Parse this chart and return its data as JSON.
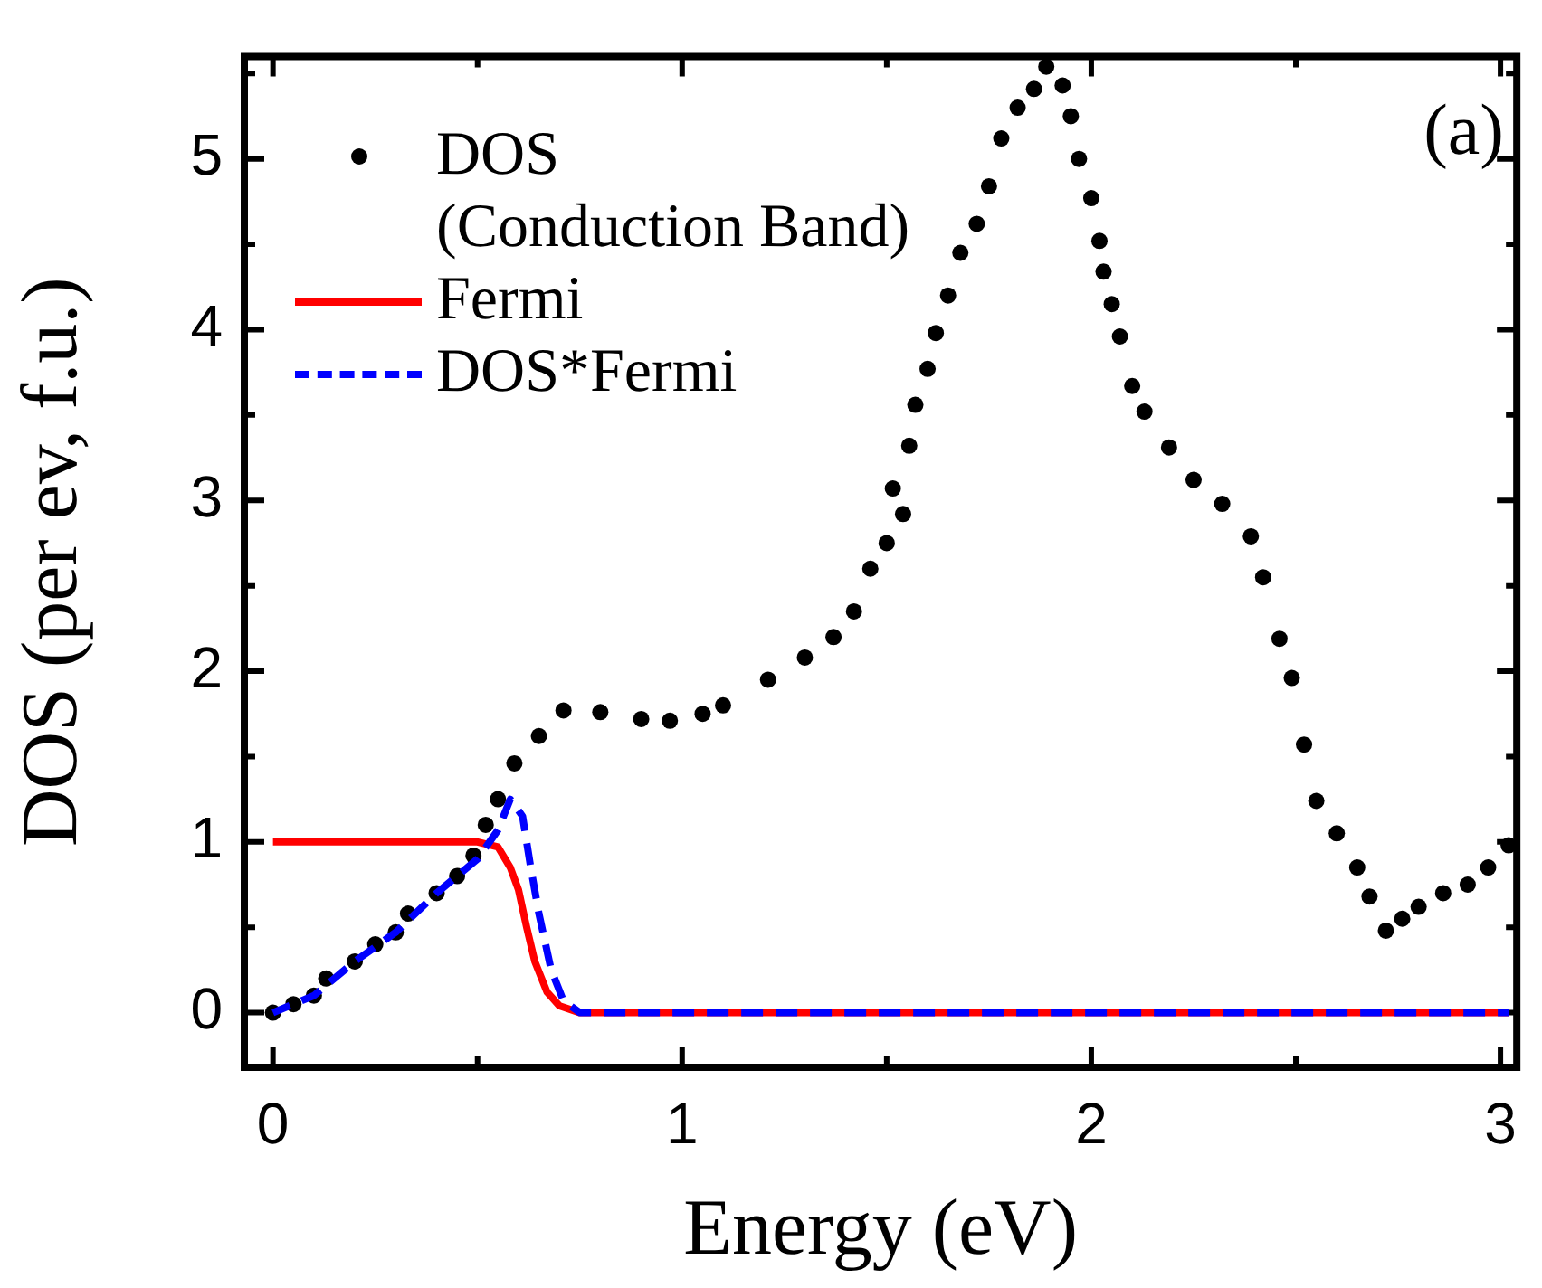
{
  "chart_data": {
    "type": "line",
    "xlabel": "Energy (eV)",
    "ylabel": "DOS (per ev, f.u.)",
    "annotations": [
      "(a)"
    ],
    "xlim": [
      -0.07,
      3.04
    ],
    "ylim": [
      -0.32,
      5.6
    ],
    "xticks": [
      0,
      {
        "value": 0.5,
        "label": null
      },
      1,
      {
        "value": 1.5,
        "label": null
      },
      2,
      {
        "value": 2.5,
        "label": null
      },
      3
    ],
    "yticks": [
      0,
      {
        "value": 0.5,
        "label": null
      },
      1,
      {
        "value": 1.5,
        "label": null
      },
      2,
      {
        "value": 2.5,
        "label": null
      },
      3,
      {
        "value": 3.5,
        "label": null
      },
      4,
      {
        "value": 4.5,
        "label": null
      },
      5,
      {
        "value": 5.5,
        "label": null
      }
    ],
    "grid": false,
    "legend": "top left",
    "series": [
      {
        "name": "DOS\n(Conduction Band)",
        "type": "scatter",
        "marker": "circle",
        "color": "#000000",
        "x": [
          0,
          0.05,
          0.1,
          0.13,
          0.2,
          0.25,
          0.3,
          0.33,
          0.4,
          0.45,
          0.49,
          0.52,
          0.55,
          0.59,
          0.65,
          0.71,
          0.8,
          0.9,
          0.97,
          1.05,
          1.1,
          1.21,
          1.3,
          1.37,
          1.42,
          1.46,
          1.5,
          1.515,
          1.54,
          1.555,
          1.57,
          1.6,
          1.62,
          1.65,
          1.68,
          1.72,
          1.75,
          1.78,
          1.82,
          1.86,
          1.89,
          1.93,
          1.95,
          1.97,
          2.0,
          2.02,
          2.03,
          2.05,
          2.07,
          2.1,
          2.13,
          2.19,
          2.25,
          2.32,
          2.39,
          2.42,
          2.46,
          2.49,
          2.52,
          2.55,
          2.6,
          2.65,
          2.68,
          2.72,
          2.76,
          2.8,
          2.86,
          2.92,
          2.97,
          3.02
        ],
        "values": [
          0,
          0.05,
          0.1,
          0.2,
          0.3,
          0.4,
          0.47,
          0.58,
          0.7,
          0.8,
          0.92,
          1.1,
          1.25,
          1.46,
          1.62,
          1.77,
          1.76,
          1.72,
          1.71,
          1.75,
          1.8,
          1.95,
          2.08,
          2.2,
          2.35,
          2.6,
          2.75,
          3.07,
          2.92,
          3.32,
          3.56,
          3.77,
          3.98,
          4.2,
          4.45,
          4.62,
          4.84,
          5.12,
          5.3,
          5.41,
          5.54,
          5.43,
          5.25,
          5.0,
          4.77,
          4.52,
          4.34,
          4.15,
          3.96,
          3.67,
          3.52,
          3.31,
          3.12,
          2.98,
          2.79,
          2.55,
          2.19,
          1.96,
          1.57,
          1.24,
          1.05,
          0.85,
          0.68,
          0.48,
          0.55,
          0.62,
          0.7,
          0.75,
          0.85,
          0.98
        ]
      },
      {
        "name": "Fermi",
        "type": "line",
        "line_style": "solid",
        "color": "#ff0000",
        "x": [
          0,
          0.5,
          0.55,
          0.58,
          0.6,
          0.62,
          0.64,
          0.67,
          0.7,
          0.75,
          3.02
        ],
        "values": [
          1,
          1,
          0.97,
          0.85,
          0.72,
          0.5,
          0.3,
          0.12,
          0.04,
          0,
          0
        ]
      },
      {
        "name": "DOS*Fermi",
        "type": "line",
        "line_style": "dashed",
        "color": "#0000ff",
        "x": [
          0,
          0.1,
          0.2,
          0.3,
          0.4,
          0.5,
          0.55,
          0.58,
          0.61,
          0.63,
          0.65,
          0.68,
          0.71,
          0.75,
          3.02
        ],
        "values": [
          0,
          0.1,
          0.3,
          0.47,
          0.7,
          0.9,
          1.07,
          1.25,
          1.15,
          0.85,
          0.58,
          0.25,
          0.07,
          0,
          0
        ]
      }
    ]
  }
}
